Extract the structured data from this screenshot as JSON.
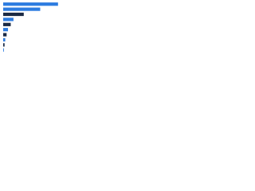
{
  "chart_data": {
    "type": "bar",
    "orientation": "horizontal",
    "categories": [
      null,
      null,
      null,
      null,
      null,
      null,
      null,
      null,
      null,
      null
    ],
    "values": [
      80,
      54,
      30,
      15,
      11,
      7,
      5,
      3,
      2,
      1
    ],
    "colors": [
      "#2d7ce0",
      "#2d7ce0",
      "#1b2a44",
      "#2d7ce0",
      "#1b2a44",
      "#2d7ce0",
      "#1b2a44",
      "#2d7ce0",
      "#1b2a44",
      "#2d7ce0"
    ],
    "xlim": [
      0,
      100
    ],
    "grid": false
  }
}
